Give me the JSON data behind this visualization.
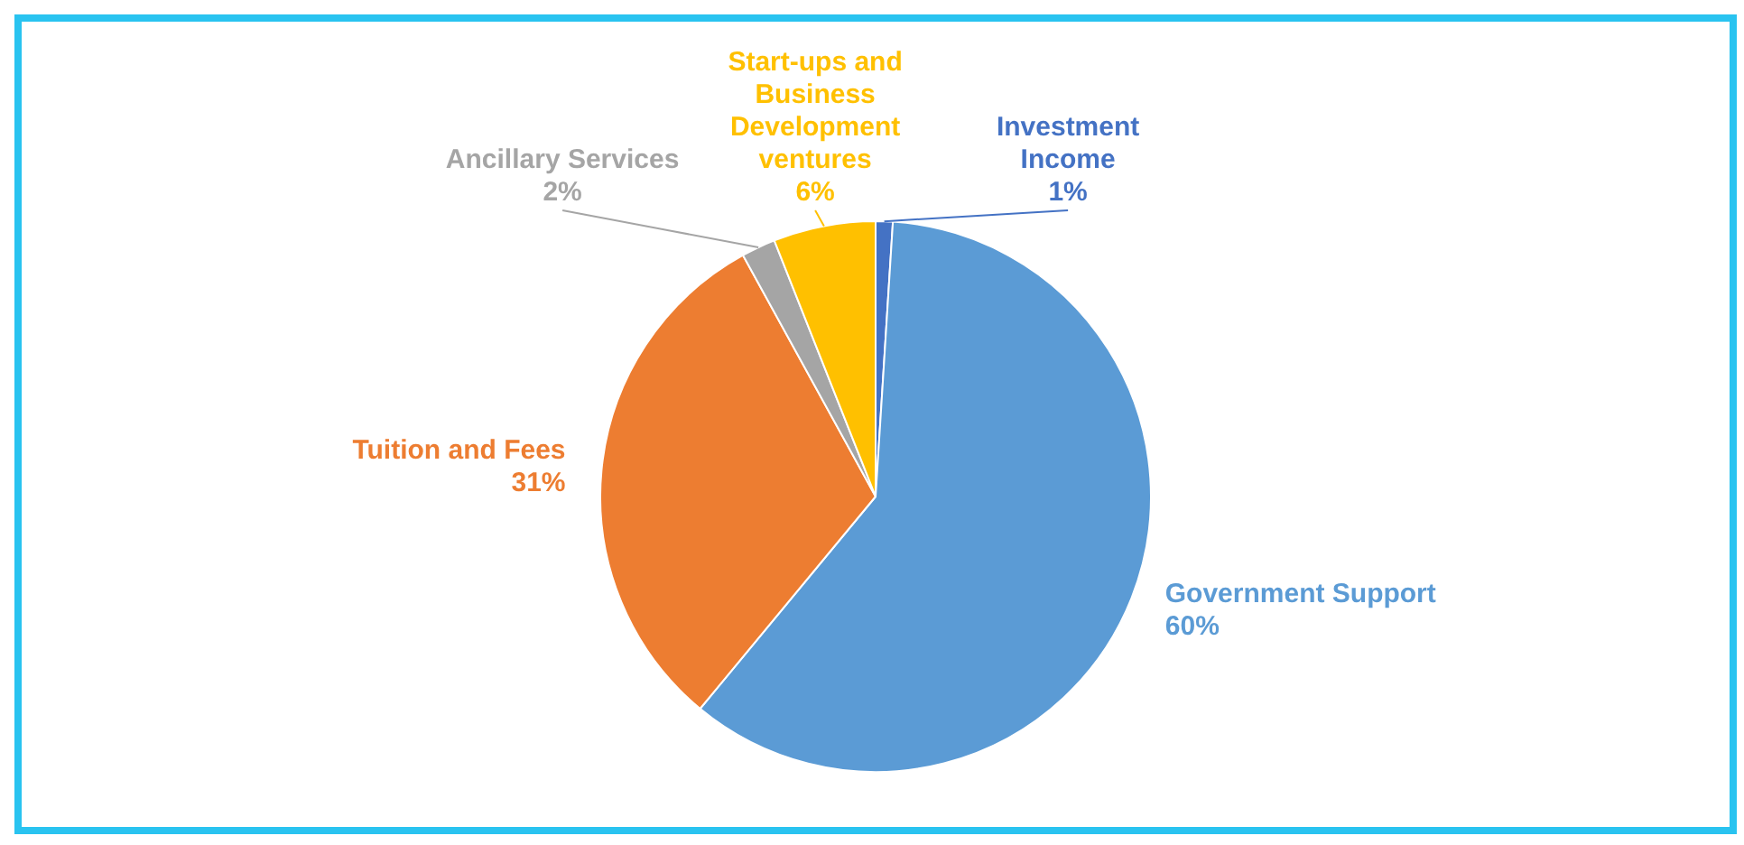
{
  "chart_data": {
    "type": "pie",
    "categories": [
      "Investment Income",
      "Government Support",
      "Tuition and Fees",
      "Ancillary Services",
      "Start-ups and Business Development ventures"
    ],
    "values": [
      1,
      60,
      31,
      2,
      6
    ],
    "value_labels": [
      "1%",
      "60%",
      "31%",
      "2%",
      "6%"
    ],
    "colors": [
      "#4472c4",
      "#5b9bd5",
      "#ed7d31",
      "#a5a5a5",
      "#ffc000"
    ],
    "legend": false
  }
}
